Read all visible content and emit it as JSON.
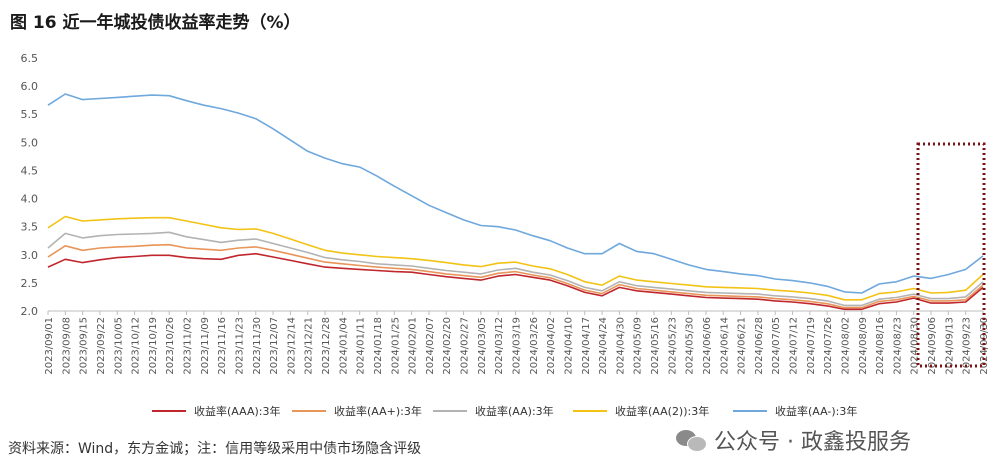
{
  "title": "图 16 近一年城投债收益率走势（%）",
  "footer": {
    "source": "资料来源：Wind，东方金诚；注：信用等级采用中债市场隐含评级",
    "watermark": "公众号 · 政鑫投服务"
  },
  "icons": {
    "watermark": "wechat-icon"
  },
  "chart_data": {
    "type": "line",
    "title": "图 16 近一年城投债收益率走势（%）",
    "xlabel": "",
    "ylabel": "",
    "ylim": [
      2.0,
      6.5
    ],
    "yticks": [
      "2.0",
      "2.5",
      "3.0",
      "3.5",
      "4.0",
      "4.5",
      "5.0",
      "5.5",
      "6.0",
      "6.5"
    ],
    "x_ticks": [
      "2023/09/01",
      "2023/09/08",
      "2023/09/15",
      "2023/09/22",
      "2023/10/05",
      "2023/10/12",
      "2023/10/19",
      "2023/10/26",
      "2023/11/02",
      "2023/11/09",
      "2023/11/16",
      "2023/11/23",
      "2023/11/30",
      "2023/12/07",
      "2023/12/14",
      "2023/12/21",
      "2023/12/28",
      "2024/01/04",
      "2024/01/11",
      "2024/01/18",
      "2024/01/25",
      "2024/02/01",
      "2024/02/07",
      "2024/02/20",
      "2024/02/27",
      "2024/03/05",
      "2024/03/12",
      "2024/03/19",
      "2024/03/26",
      "2024/04/02",
      "2024/04/10",
      "2024/04/17",
      "2024/04/24",
      "2024/04/30",
      "2024/05/09",
      "2024/05/16",
      "2024/05/23",
      "2024/05/30",
      "2024/06/06",
      "2024/06/14",
      "2024/06/21",
      "2024/06/28",
      "2024/07/05",
      "2024/07/12",
      "2024/07/19",
      "2024/07/26",
      "2024/08/02",
      "2024/08/09",
      "2024/08/16",
      "2024/08/23",
      "2024/08/30",
      "2024/09/06",
      "2024/09/13",
      "2024/09/23",
      "2024/09/30"
    ],
    "grid": false,
    "legend_position": "bottom",
    "annotation": "dotted-box-recent-period",
    "series": [
      {
        "name": "收益率(AAA):3年",
        "color": "#c0272d",
        "values": [
          2.78,
          2.92,
          2.86,
          2.91,
          2.95,
          2.97,
          2.99,
          2.99,
          2.95,
          2.93,
          2.92,
          2.99,
          3.02,
          2.96,
          2.9,
          2.84,
          2.78,
          2.76,
          2.74,
          2.72,
          2.7,
          2.69,
          2.65,
          2.61,
          2.58,
          2.55,
          2.62,
          2.65,
          2.6,
          2.55,
          2.45,
          2.33,
          2.27,
          2.42,
          2.36,
          2.33,
          2.3,
          2.27,
          2.24,
          2.23,
          2.22,
          2.21,
          2.18,
          2.16,
          2.13,
          2.09,
          2.03,
          2.03,
          2.13,
          2.16,
          2.23,
          2.14,
          2.14,
          2.16,
          2.42
        ]
      },
      {
        "name": "收益率(AA+):3年",
        "color": "#e8955a",
        "values": [
          2.96,
          3.16,
          3.08,
          3.12,
          3.14,
          3.15,
          3.17,
          3.18,
          3.12,
          3.1,
          3.08,
          3.12,
          3.14,
          3.08,
          3.01,
          2.94,
          2.87,
          2.84,
          2.81,
          2.78,
          2.76,
          2.74,
          2.7,
          2.66,
          2.63,
          2.6,
          2.67,
          2.7,
          2.64,
          2.59,
          2.49,
          2.37,
          2.31,
          2.47,
          2.4,
          2.37,
          2.34,
          2.31,
          2.28,
          2.27,
          2.26,
          2.25,
          2.22,
          2.2,
          2.17,
          2.13,
          2.06,
          2.06,
          2.17,
          2.2,
          2.26,
          2.18,
          2.18,
          2.2,
          2.46
        ]
      },
      {
        "name": "收益率(AA):3年",
        "color": "#b3b3b3",
        "values": [
          3.12,
          3.38,
          3.3,
          3.34,
          3.36,
          3.37,
          3.38,
          3.4,
          3.32,
          3.27,
          3.22,
          3.26,
          3.28,
          3.2,
          3.12,
          3.04,
          2.95,
          2.91,
          2.88,
          2.84,
          2.82,
          2.8,
          2.76,
          2.72,
          2.69,
          2.66,
          2.73,
          2.76,
          2.69,
          2.64,
          2.54,
          2.42,
          2.36,
          2.52,
          2.45,
          2.42,
          2.39,
          2.36,
          2.33,
          2.32,
          2.31,
          2.3,
          2.27,
          2.25,
          2.22,
          2.18,
          2.1,
          2.1,
          2.21,
          2.24,
          2.3,
          2.22,
          2.22,
          2.25,
          2.52
        ]
      },
      {
        "name": "收益率(AA(2)):3年",
        "color": "#f2c314",
        "values": [
          3.48,
          3.68,
          3.6,
          3.62,
          3.64,
          3.65,
          3.66,
          3.66,
          3.6,
          3.54,
          3.48,
          3.45,
          3.46,
          3.38,
          3.28,
          3.18,
          3.08,
          3.03,
          3.0,
          2.97,
          2.95,
          2.93,
          2.9,
          2.86,
          2.82,
          2.79,
          2.85,
          2.87,
          2.8,
          2.75,
          2.65,
          2.52,
          2.46,
          2.62,
          2.55,
          2.52,
          2.49,
          2.46,
          2.43,
          2.42,
          2.41,
          2.4,
          2.37,
          2.35,
          2.32,
          2.28,
          2.2,
          2.2,
          2.31,
          2.34,
          2.4,
          2.32,
          2.33,
          2.37,
          2.65
        ]
      },
      {
        "name": "收益率(AA-):3年",
        "color": "#6fa8dc",
        "values": [
          5.66,
          5.86,
          5.76,
          5.78,
          5.8,
          5.82,
          5.84,
          5.83,
          5.74,
          5.66,
          5.6,
          5.52,
          5.42,
          5.24,
          5.04,
          4.84,
          4.72,
          4.62,
          4.56,
          4.4,
          4.22,
          4.05,
          3.88,
          3.75,
          3.62,
          3.52,
          3.5,
          3.44,
          3.34,
          3.25,
          3.12,
          3.02,
          3.02,
          3.2,
          3.06,
          3.02,
          2.92,
          2.82,
          2.74,
          2.7,
          2.66,
          2.63,
          2.57,
          2.54,
          2.5,
          2.44,
          2.34,
          2.32,
          2.48,
          2.52,
          2.62,
          2.58,
          2.65,
          2.74,
          2.98
        ]
      }
    ]
  }
}
